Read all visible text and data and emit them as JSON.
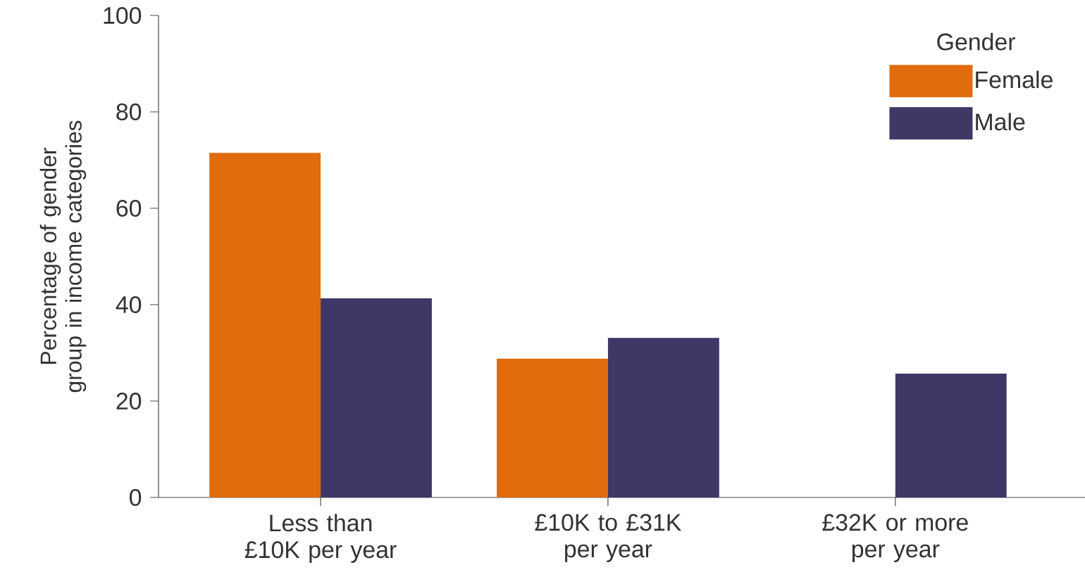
{
  "chart_data": {
    "type": "bar",
    "ylabel": "Percentage of gender group in income categories",
    "categories": [
      "Less than £10K per year",
      "£10K to £31K per year",
      "£32K or more per year"
    ],
    "series": [
      {
        "name": "Female",
        "color": "#e06c0e",
        "values": [
          71.5,
          28.8,
          0
        ]
      },
      {
        "name": "Male",
        "color": "#3d3866",
        "values": [
          41.3,
          33.1,
          25.7
        ]
      }
    ],
    "ylim": [
      0,
      100
    ],
    "yticks": [
      0,
      20,
      40,
      60,
      80,
      100
    ],
    "legend": "top right",
    "legend_title": "Gender"
  }
}
